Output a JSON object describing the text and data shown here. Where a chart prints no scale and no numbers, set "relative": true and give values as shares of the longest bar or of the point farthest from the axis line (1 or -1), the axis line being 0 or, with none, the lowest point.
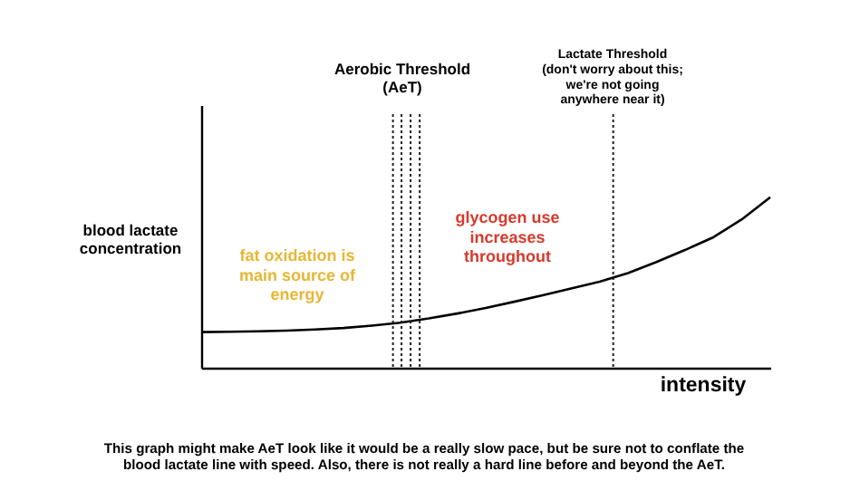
{
  "chart_data": {
    "type": "line",
    "relative": true,
    "line_style": "solid",
    "ylabel": "blood lactate\nconcentration",
    "xlabel": "intensity",
    "categories": [
      null,
      null,
      null,
      null,
      null,
      null,
      null,
      null,
      null,
      null,
      null,
      null,
      null,
      null,
      null,
      null,
      null,
      null,
      null,
      null,
      null
    ],
    "series": [
      {
        "color": "#000000",
        "values": [
          0.209,
          0.211,
          0.214,
          0.218,
          0.224,
          0.233,
          0.247,
          0.264,
          0.289,
          0.318,
          0.35,
          0.387,
          0.425,
          0.465,
          0.505,
          0.555,
          0.62,
          0.69,
          0.765,
          0.87,
          1
        ]
      }
    ],
    "annotations": [
      "Aerobic Threshold\n(AeT)",
      "Lactate Threshold\n(don't worry about this;\nwe're not going\nanywhere near it)",
      "fat oxidation is\nmain source of\nenergy",
      "glycogen use\nincreases\nthroughout",
      "This graph might make AeT look like it would be a really slow pace, but be sure not to conflate the\nblood lactate line with speed. Also, there is not really a hard line before and beyond the AeT."
    ]
  }
}
